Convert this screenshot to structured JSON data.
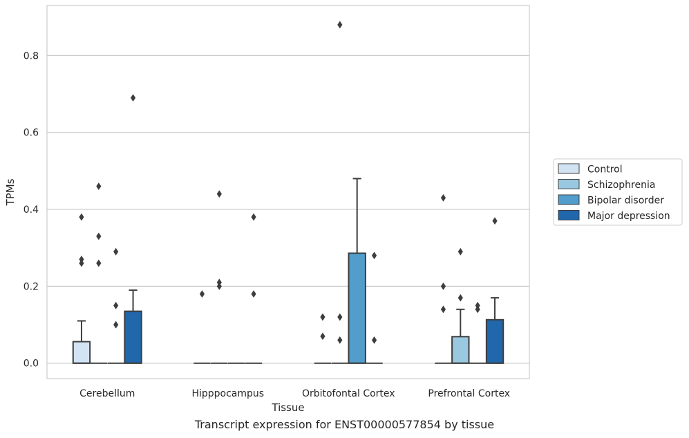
{
  "caption": "Transcript expression for ENST00000577854 by tissue",
  "colors": {
    "Control": "#d2e3f3",
    "Schizophrenia": "#9ac8e0",
    "Bipolar disorder": "#529dcc",
    "Major depression": "#2167ac",
    "outlier": "#3d3d3d",
    "edge": "#3d3d3d",
    "grid": "#cccccc"
  },
  "chart_data": {
    "type": "box",
    "xlabel": "Tissue",
    "ylabel": "TPMs",
    "ylim": [
      -0.04,
      0.93
    ],
    "yticks": [
      0.0,
      0.2,
      0.4,
      0.6,
      0.8
    ],
    "ytick_labels": [
      "0.0",
      "0.2",
      "0.4",
      "0.6",
      "0.8"
    ],
    "grid": "horizontal",
    "legend_position": "right",
    "categories": [
      "Cerebellum",
      "Hipppocampus",
      "Orbitofontal Cortex",
      "Prefrontal Cortex"
    ],
    "series": [
      {
        "name": "Control",
        "boxes": [
          {
            "q1": 0.0,
            "median": 0.0,
            "q3": 0.056,
            "whisker_low": 0.0,
            "whisker_high": 0.11,
            "outliers": [
              0.38,
              0.27,
              0.26
            ]
          },
          {
            "q1": 0.0,
            "median": 0.0,
            "q3": 0.0,
            "whisker_low": 0.0,
            "whisker_high": 0.0,
            "outliers": [
              0.18
            ]
          },
          {
            "q1": 0.0,
            "median": 0.0,
            "q3": 0.0,
            "whisker_low": 0.0,
            "whisker_high": 0.0,
            "outliers": [
              0.12,
              0.07
            ]
          },
          {
            "q1": 0.0,
            "median": 0.0,
            "q3": 0.0,
            "whisker_low": 0.0,
            "whisker_high": 0.0,
            "outliers": [
              0.43,
              0.2,
              0.14
            ]
          }
        ]
      },
      {
        "name": "Schizophrenia",
        "boxes": [
          {
            "q1": 0.0,
            "median": 0.0,
            "q3": 0.0,
            "whisker_low": 0.0,
            "whisker_high": 0.0,
            "outliers": [
              0.46,
              0.33,
              0.26
            ]
          },
          {
            "q1": 0.0,
            "median": 0.0,
            "q3": 0.0,
            "whisker_low": 0.0,
            "whisker_high": 0.0,
            "outliers": [
              0.44,
              0.21,
              0.2
            ]
          },
          {
            "q1": 0.0,
            "median": 0.0,
            "q3": 0.0,
            "whisker_low": 0.0,
            "whisker_high": 0.0,
            "outliers": [
              0.88,
              0.12,
              0.06
            ]
          },
          {
            "q1": 0.0,
            "median": 0.0,
            "q3": 0.069,
            "whisker_low": 0.0,
            "whisker_high": 0.14,
            "outliers": [
              0.29,
              0.17
            ]
          }
        ]
      },
      {
        "name": "Bipolar disorder",
        "boxes": [
          {
            "q1": 0.0,
            "median": 0.0,
            "q3": 0.0,
            "whisker_low": 0.0,
            "whisker_high": 0.0,
            "outliers": [
              0.29,
              0.15,
              0.1
            ]
          },
          {
            "q1": 0.0,
            "median": 0.0,
            "q3": 0.0,
            "whisker_low": 0.0,
            "whisker_high": 0.0,
            "outliers": []
          },
          {
            "q1": 0.0,
            "median": 0.0,
            "q3": 0.286,
            "whisker_low": 0.0,
            "whisker_high": 0.48,
            "outliers": []
          },
          {
            "q1": 0.0,
            "median": 0.0,
            "q3": 0.0,
            "whisker_low": 0.0,
            "whisker_high": 0.0,
            "outliers": [
              0.15,
              0.14
            ]
          }
        ]
      },
      {
        "name": "Major depression",
        "boxes": [
          {
            "q1": 0.0,
            "median": 0.0,
            "q3": 0.135,
            "whisker_low": 0.0,
            "whisker_high": 0.19,
            "outliers": [
              0.69
            ]
          },
          {
            "q1": 0.0,
            "median": 0.0,
            "q3": 0.0,
            "whisker_low": 0.0,
            "whisker_high": 0.0,
            "outliers": [
              0.38,
              0.18
            ]
          },
          {
            "q1": 0.0,
            "median": 0.0,
            "q3": 0.0,
            "whisker_low": 0.0,
            "whisker_high": 0.0,
            "outliers": [
              0.28,
              0.06
            ]
          },
          {
            "q1": 0.0,
            "median": 0.0,
            "q3": 0.113,
            "whisker_low": 0.0,
            "whisker_high": 0.17,
            "outliers": [
              0.37
            ]
          }
        ]
      }
    ]
  }
}
